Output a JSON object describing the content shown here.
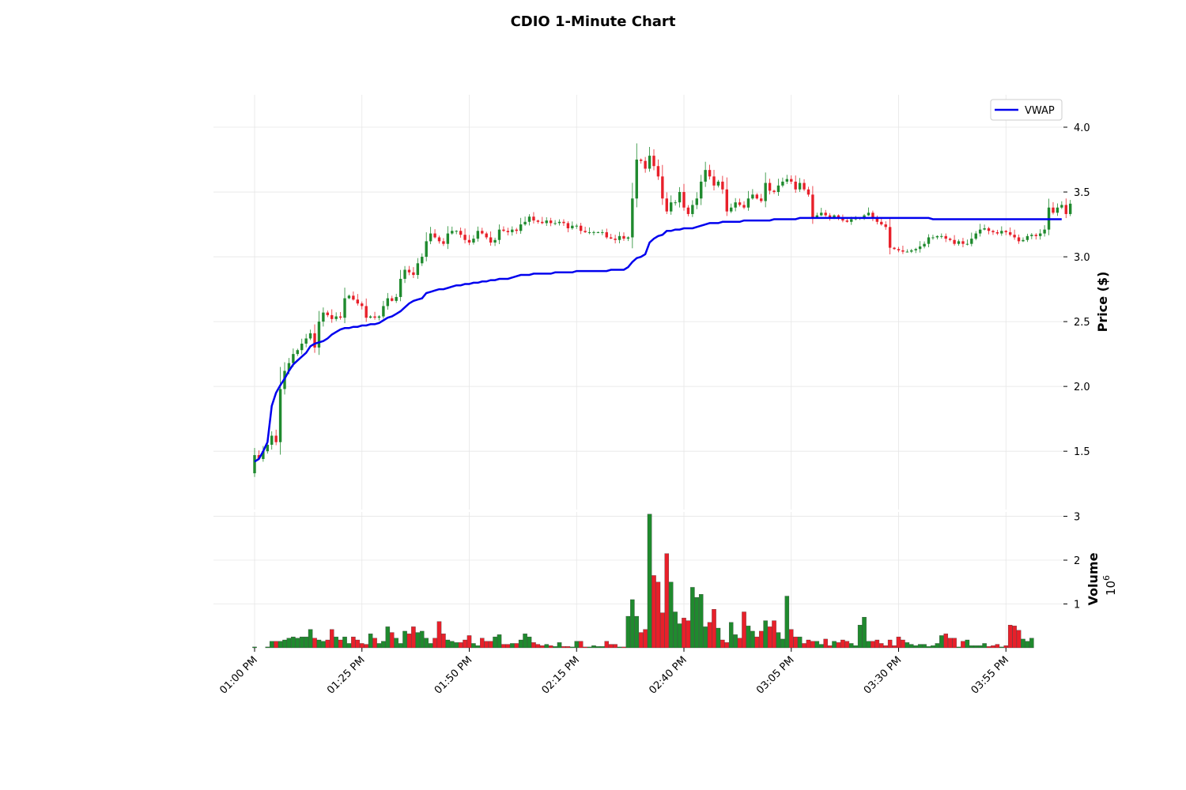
{
  "chart_data": {
    "type": "candlestick",
    "title": "CDIO 1-Minute Chart",
    "x_start_label": "01:00 PM",
    "interval_minutes": 1,
    "x_tick_labels": [
      "01:00 PM",
      "01:25 PM",
      "01:50 PM",
      "02:15 PM",
      "02:40 PM",
      "03:05 PM",
      "03:30 PM",
      "03:55 PM"
    ],
    "price_panel": {
      "ylabel": "Price ($)",
      "ylim": [
        1.05,
        4.25
      ],
      "yticks": [
        1.5,
        2.0,
        2.5,
        3.0,
        3.5,
        4.0
      ],
      "ytick_labels": [
        "1.5",
        "2.0",
        "2.5",
        "3.0",
        "3.5",
        "4.0"
      ],
      "close": [
        1.47,
        1.44,
        1.5,
        1.55,
        1.62,
        1.57,
        1.98,
        2.12,
        2.18,
        2.25,
        2.28,
        2.33,
        2.37,
        2.41,
        2.3,
        2.5,
        2.57,
        2.55,
        2.52,
        2.54,
        2.53,
        2.68,
        2.7,
        2.67,
        2.64,
        2.62,
        2.53,
        2.54,
        2.53,
        2.54,
        2.62,
        2.68,
        2.66,
        2.69,
        2.83,
        2.9,
        2.88,
        2.86,
        2.95,
        3.0,
        3.12,
        3.18,
        3.15,
        3.12,
        3.1,
        3.18,
        3.2,
        3.2,
        3.17,
        3.13,
        3.11,
        3.14,
        3.2,
        3.18,
        3.15,
        3.11,
        3.13,
        3.21,
        3.2,
        3.19,
        3.21,
        3.2,
        3.25,
        3.27,
        3.31,
        3.28,
        3.27,
        3.26,
        3.28,
        3.26,
        3.26,
        3.27,
        3.26,
        3.22,
        3.24,
        3.24,
        3.2,
        3.19,
        3.19,
        3.19,
        3.19,
        3.19,
        3.15,
        3.14,
        3.13,
        3.16,
        3.14,
        3.15,
        3.45,
        3.75,
        3.74,
        3.68,
        3.78,
        3.7,
        3.62,
        3.45,
        3.35,
        3.42,
        3.42,
        3.5,
        3.38,
        3.33,
        3.4,
        3.45,
        3.58,
        3.67,
        3.62,
        3.55,
        3.58,
        3.52,
        3.35,
        3.38,
        3.42,
        3.4,
        3.38,
        3.45,
        3.48,
        3.45,
        3.43,
        3.57,
        3.51,
        3.5,
        3.55,
        3.58,
        3.6,
        3.58,
        3.52,
        3.57,
        3.52,
        3.48,
        3.3,
        3.32,
        3.34,
        3.32,
        3.3,
        3.32,
        3.3,
        3.28,
        3.27,
        3.29,
        3.3,
        3.3,
        3.32,
        3.34,
        3.3,
        3.27,
        3.25,
        3.23,
        3.07,
        3.06,
        3.05,
        3.04,
        3.04,
        3.05,
        3.06,
        3.08,
        3.1,
        3.15,
        3.15,
        3.16,
        3.16,
        3.14,
        3.13,
        3.1,
        3.12,
        3.1,
        3.1,
        3.14,
        3.18,
        3.21,
        3.22,
        3.2,
        3.19,
        3.18,
        3.2,
        3.19,
        3.17,
        3.15,
        3.12,
        3.13,
        3.16,
        3.17,
        3.16,
        3.18,
        3.21,
        3.38,
        3.34,
        3.38,
        3.4,
        3.33,
        3.41
      ],
      "vwap": [
        1.42,
        1.44,
        1.5,
        1.57,
        1.85,
        1.95,
        2.01,
        2.06,
        2.12,
        2.17,
        2.2,
        2.23,
        2.26,
        2.31,
        2.33,
        2.34,
        2.35,
        2.37,
        2.4,
        2.42,
        2.44,
        2.45,
        2.45,
        2.46,
        2.46,
        2.47,
        2.47,
        2.48,
        2.48,
        2.49,
        2.51,
        2.53,
        2.54,
        2.56,
        2.58,
        2.61,
        2.64,
        2.66,
        2.67,
        2.68,
        2.72,
        2.73,
        2.74,
        2.75,
        2.75,
        2.76,
        2.77,
        2.78,
        2.78,
        2.79,
        2.79,
        2.8,
        2.8,
        2.81,
        2.81,
        2.82,
        2.82,
        2.83,
        2.83,
        2.83,
        2.84,
        2.85,
        2.86,
        2.86,
        2.86,
        2.87,
        2.87,
        2.87,
        2.87,
        2.87,
        2.88,
        2.88,
        2.88,
        2.88,
        2.88,
        2.89,
        2.89,
        2.89,
        2.89,
        2.89,
        2.89,
        2.89,
        2.89,
        2.9,
        2.9,
        2.9,
        2.9,
        2.92,
        2.96,
        2.99,
        3.0,
        3.02,
        3.11,
        3.14,
        3.16,
        3.17,
        3.2,
        3.2,
        3.21,
        3.21,
        3.22,
        3.22,
        3.22,
        3.23,
        3.24,
        3.25,
        3.26,
        3.26,
        3.26,
        3.27,
        3.27,
        3.27,
        3.27,
        3.27,
        3.28,
        3.28,
        3.28,
        3.28,
        3.28,
        3.28,
        3.28,
        3.29,
        3.29,
        3.29,
        3.29,
        3.29,
        3.29,
        3.3,
        3.3,
        3.3,
        3.3,
        3.3,
        3.3,
        3.3,
        3.3,
        3.3,
        3.3,
        3.3,
        3.3,
        3.3,
        3.3,
        3.3,
        3.3,
        3.3,
        3.3,
        3.3,
        3.3,
        3.3,
        3.3,
        3.3,
        3.3,
        3.3,
        3.3,
        3.3,
        3.3,
        3.3,
        3.3,
        3.3,
        3.29,
        3.29,
        3.29,
        3.29,
        3.29,
        3.29,
        3.29,
        3.29,
        3.29,
        3.29,
        3.29,
        3.29,
        3.29,
        3.29,
        3.29,
        3.29,
        3.29,
        3.29,
        3.29,
        3.29,
        3.29,
        3.29,
        3.29,
        3.29,
        3.29,
        3.29,
        3.29,
        3.29,
        3.29,
        3.29,
        3.29
      ],
      "legend": [
        "VWAP"
      ],
      "legend_position": "top-right",
      "up_color": "#1f8a2e",
      "down_color": "#e8202a",
      "vwap_color": "#0000ee"
    },
    "volume_panel": {
      "ylabel": "Volume",
      "scale_label": "10^6",
      "ylim": [
        0,
        3.1
      ],
      "yticks": [
        1,
        2,
        3
      ],
      "ytick_labels": [
        "1",
        "2",
        "3"
      ],
      "volume_millions": [
        0.02,
        0,
        0,
        0.02,
        0.15,
        0.15,
        0.15,
        0.18,
        0.22,
        0.25,
        0.22,
        0.25,
        0.25,
        0.42,
        0.22,
        0.18,
        0.15,
        0.18,
        0.42,
        0.25,
        0.18,
        0.25,
        0.1,
        0.25,
        0.18,
        0.1,
        0.08,
        0.32,
        0.22,
        0.1,
        0.15,
        0.48,
        0.35,
        0.22,
        0.1,
        0.38,
        0.32,
        0.48,
        0.35,
        0.38,
        0.22,
        0.1,
        0.22,
        0.6,
        0.32,
        0.18,
        0.15,
        0.12,
        0.12,
        0.18,
        0.28,
        0.1,
        0.05,
        0.22,
        0.15,
        0.15,
        0.25,
        0.3,
        0.08,
        0.08,
        0.1,
        0.1,
        0.18,
        0.32,
        0.25,
        0.12,
        0.08,
        0.05,
        0.08,
        0.05,
        0.03,
        0.12,
        0.03,
        0.03,
        0.02,
        0.15,
        0.15,
        0.02,
        0.02,
        0.05,
        0.03,
        0.03,
        0.15,
        0.08,
        0.08,
        0.02,
        0.02,
        0.72,
        1.1,
        0.72,
        0.35,
        0.42,
        3.05,
        1.65,
        1.5,
        0.8,
        2.15,
        1.5,
        0.82,
        0.55,
        0.68,
        0.62,
        1.38,
        1.15,
        1.22,
        0.48,
        0.58,
        0.88,
        0.45,
        0.18,
        0.12,
        0.58,
        0.3,
        0.22,
        0.82,
        0.5,
        0.38,
        0.25,
        0.38,
        0.62,
        0.48,
        0.62,
        0.35,
        0.2,
        1.18,
        0.42,
        0.25,
        0.25,
        0.1,
        0.18,
        0.15,
        0.15,
        0.08,
        0.2,
        0.05,
        0.15,
        0.12,
        0.18,
        0.15,
        0.1,
        0.05,
        0.52,
        0.7,
        0.15,
        0.15,
        0.18,
        0.1,
        0.05,
        0.18,
        0.05,
        0.25,
        0.18,
        0.12,
        0.08,
        0.05,
        0.08,
        0.08,
        0.03,
        0.05,
        0.1,
        0.28,
        0.32,
        0.22,
        0.22,
        0.02,
        0.15,
        0.18,
        0.05,
        0.05,
        0.05,
        0.1,
        0.03,
        0.05,
        0.08,
        0.02,
        0.05,
        0.52,
        0.5,
        0.4,
        0.2,
        0.15,
        0.22
      ]
    }
  }
}
